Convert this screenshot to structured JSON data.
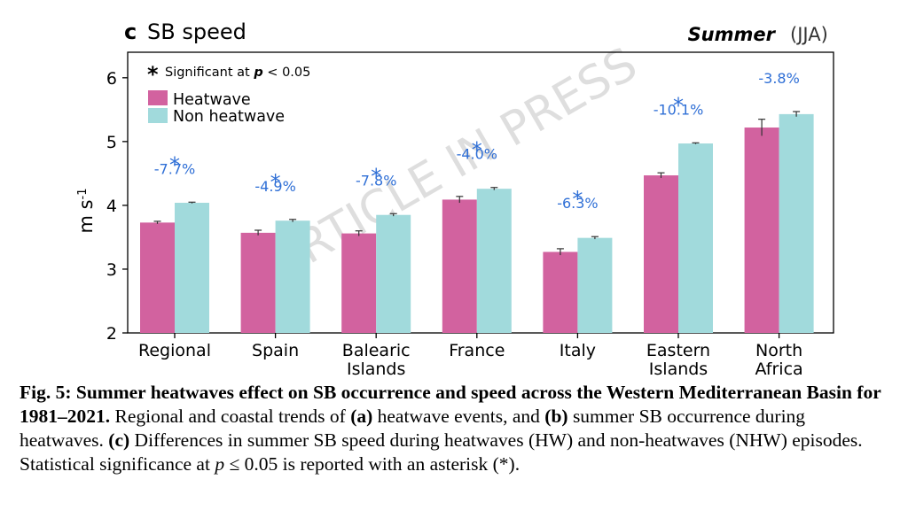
{
  "chart_data": {
    "type": "bar",
    "panel_label": "c",
    "title": "SB speed",
    "season": "Summer",
    "season_months": "(JJA)",
    "ylabel": "m s",
    "ylabel_sup": "-1",
    "ylim": [
      2,
      6.4
    ],
    "yticks": [
      2,
      3,
      4,
      5,
      6
    ],
    "grid": false,
    "legend_position": "top-left",
    "significance_legend": {
      "symbol": "*",
      "text_before": "Significant at ",
      "p": "p",
      "text_after": " < 0.05"
    },
    "categories": [
      [
        "Regional"
      ],
      [
        "Spain"
      ],
      [
        "Balearic",
        "Islands"
      ],
      [
        "France"
      ],
      [
        "Italy"
      ],
      [
        "Eastern",
        "Islands"
      ],
      [
        "North",
        "Africa"
      ]
    ],
    "series": [
      {
        "name": "Heatwave",
        "color": "#d2629f",
        "values": [
          3.73,
          3.57,
          3.56,
          4.09,
          3.27,
          4.47,
          5.22
        ],
        "errors": [
          0.02,
          0.04,
          0.04,
          0.05,
          0.05,
          0.04,
          0.13
        ]
      },
      {
        "name": "Non heatwave",
        "color": "#a1dadc",
        "values": [
          4.04,
          3.76,
          3.85,
          4.26,
          3.49,
          4.97,
          5.43
        ],
        "errors": [
          0.01,
          0.02,
          0.02,
          0.02,
          0.02,
          0.01,
          0.04
        ]
      }
    ],
    "annotations": [
      {
        "significant": true,
        "label": "-7.7%"
      },
      {
        "significant": true,
        "label": "-4.9%"
      },
      {
        "significant": true,
        "label": "-7.8%"
      },
      {
        "significant": true,
        "label": "-4.0%"
      },
      {
        "significant": true,
        "label": "-6.3%"
      },
      {
        "significant": true,
        "label": "-10.1%"
      },
      {
        "significant": false,
        "label": "-3.8%"
      }
    ],
    "annotation_color": "#2f6fd6"
  },
  "watermark": "ARTICLE IN PRESS",
  "caption": {
    "bold": "Fig. 5: Summer heatwaves effect on SB occurrence and speed across the Western Mediterranean Basin for 1981–2021.",
    "t1": " Regional and coastal trends of ",
    "a": "(a)",
    "t2": " heatwave events, and ",
    "b": "(b)",
    "t3": " summer SB occurrence during heatwaves. ",
    "c": "(c)",
    "t4": " Differences in summer SB speed during heatwaves (HW) and non-heatwaves (NHW) episodes. Statistical significance at ",
    "p": "p",
    "t5": " ≤ 0.05 is reported with an asterisk (*)."
  }
}
